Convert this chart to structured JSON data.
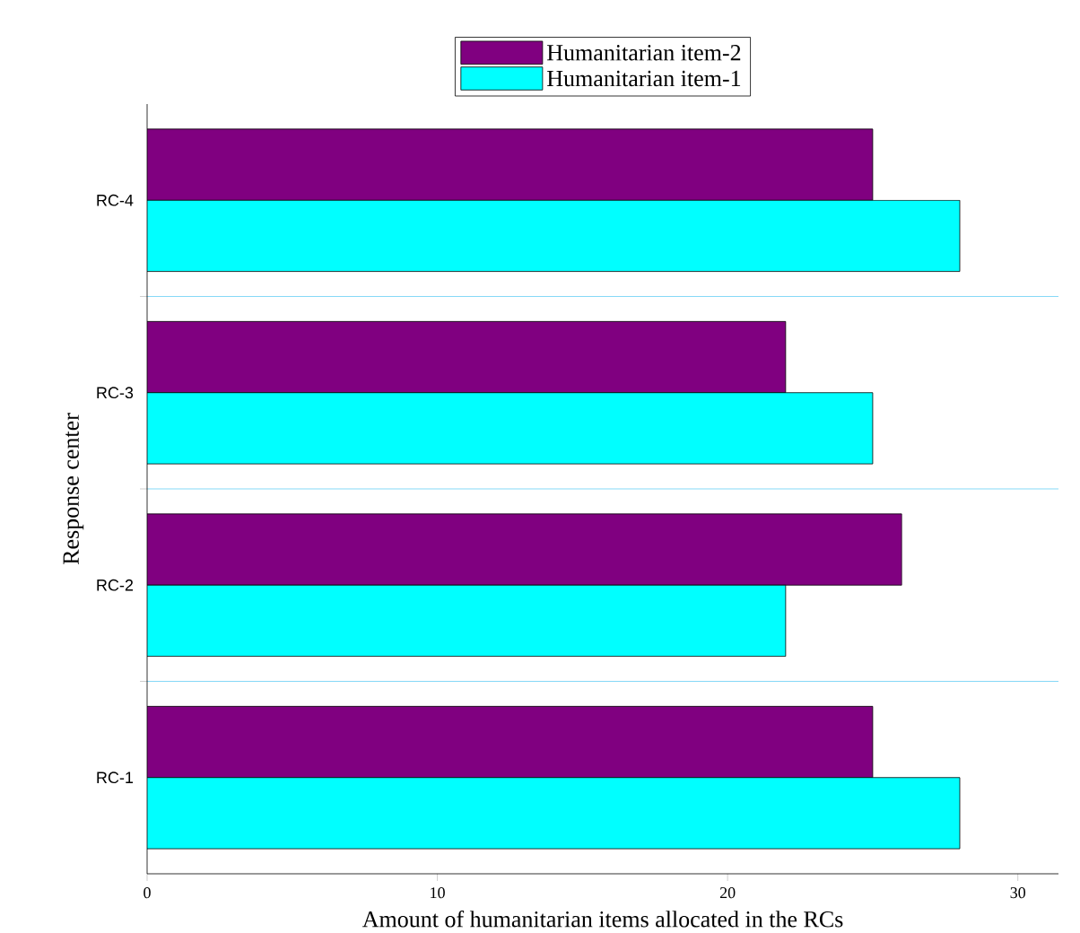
{
  "chart_data": {
    "type": "bar",
    "orientation": "horizontal",
    "xlabel": "Amount of humanitarian items allocated in the RCs",
    "ylabel": "Response center",
    "categories": [
      "RC-4",
      "RC-3",
      "RC-2",
      "RC-1"
    ],
    "series": [
      {
        "name": "Humanitarian item-2",
        "color": "#800080",
        "values": [
          25,
          22,
          26,
          25
        ]
      },
      {
        "name": "Humanitarian item-1",
        "color": "#00ffff",
        "values": [
          28,
          25,
          22,
          28
        ]
      }
    ],
    "xlim": [
      0,
      31.4
    ],
    "xticks": [
      0,
      10,
      20,
      30
    ],
    "grid": "y",
    "legend": "top"
  }
}
